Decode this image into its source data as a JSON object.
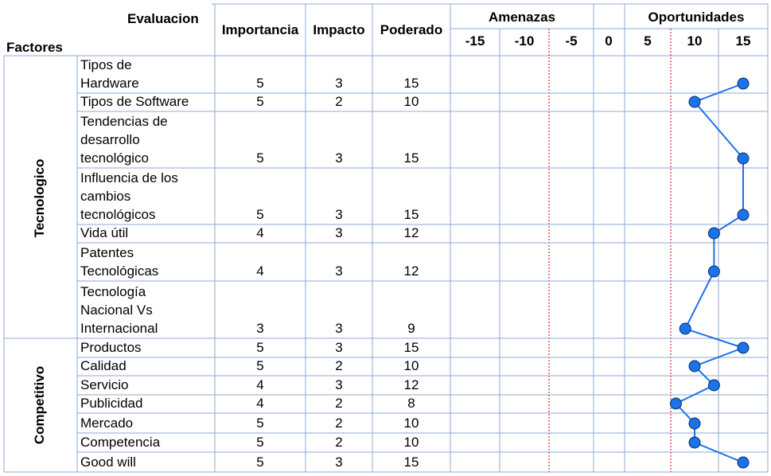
{
  "header": {
    "evaluacion": "Evaluacion",
    "factores": "Factores",
    "importancia": "Importancia",
    "impacto": "Impacto",
    "poderado": "Poderado",
    "amenazas": "Amenazas",
    "oportunidades": "Oportunidades",
    "scale": [
      "-15",
      "-10",
      "-5",
      "0",
      "5",
      "10",
      "15"
    ]
  },
  "groups": [
    {
      "name": "Tecnologico",
      "first_row": 0,
      "last_row": 6
    },
    {
      "name": "Competitivo",
      "first_row": 7,
      "last_row": 13
    }
  ],
  "rows": [
    {
      "factor": "Tipos de\nHardware",
      "importancia": "5",
      "impacto": "3",
      "poderado": "15"
    },
    {
      "factor": "Tipos de Software",
      "importancia": "5",
      "impacto": "2",
      "poderado": "10"
    },
    {
      "factor": "Tendencias de\ndesarrollo\ntecnológico",
      "importancia": "5",
      "impacto": "3",
      "poderado": "15"
    },
    {
      "factor": "Influencia de los\ncambios\ntecnológicos",
      "importancia": "5",
      "impacto": "3",
      "poderado": "15"
    },
    {
      "factor": "Vida útil",
      "importancia": "4",
      "impacto": "3",
      "poderado": "12"
    },
    {
      "factor": "Patentes\nTecnológicas",
      "importancia": "4",
      "impacto": "3",
      "poderado": "12"
    },
    {
      "factor": "Tecnología\nNacional Vs\nInternacional",
      "importancia": "3",
      "impacto": "3",
      "poderado": "9"
    },
    {
      "factor": "Productos",
      "importancia": "5",
      "impacto": "3",
      "poderado": "15"
    },
    {
      "factor": "Calidad",
      "importancia": "5",
      "impacto": "2",
      "poderado": "10"
    },
    {
      "factor": "Servicio",
      "importancia": "4",
      "impacto": "3",
      "poderado": "12"
    },
    {
      "factor": "Publicidad",
      "importancia": "4",
      "impacto": "2",
      "poderado": "8"
    },
    {
      "factor": "Mercado",
      "importancia": "5",
      "impacto": "2",
      "poderado": "10"
    },
    {
      "factor": "Competencia",
      "importancia": "5",
      "impacto": "2",
      "poderado": "10"
    },
    {
      "factor": "Good will",
      "importancia": "5",
      "impacto": "3",
      "poderado": "15"
    }
  ],
  "chart_data": {
    "type": "line",
    "x_ticks": [
      -15,
      -10,
      -5,
      0,
      5,
      10,
      15
    ],
    "xlim": [
      -15,
      15
    ],
    "categories": [
      "Tipos de Hardware",
      "Tipos de Software",
      "Tendencias de desarrollo tecnológico",
      "Influencia de los cambios tecnológicos",
      "Vida útil",
      "Patentes Tecnológicas",
      "Tecnología Nacional Vs Internacional",
      "Productos",
      "Calidad",
      "Servicio",
      "Publicidad",
      "Mercado",
      "Competencia",
      "Good will"
    ],
    "values": [
      15,
      10,
      15,
      15,
      12,
      12,
      9,
      15,
      10,
      12,
      8,
      10,
      10,
      15
    ],
    "color": "#1a73e8",
    "marker_color": "#1a73e8"
  },
  "colors": {
    "grid": "#8fa9d6",
    "dashed": "#cc0000"
  }
}
